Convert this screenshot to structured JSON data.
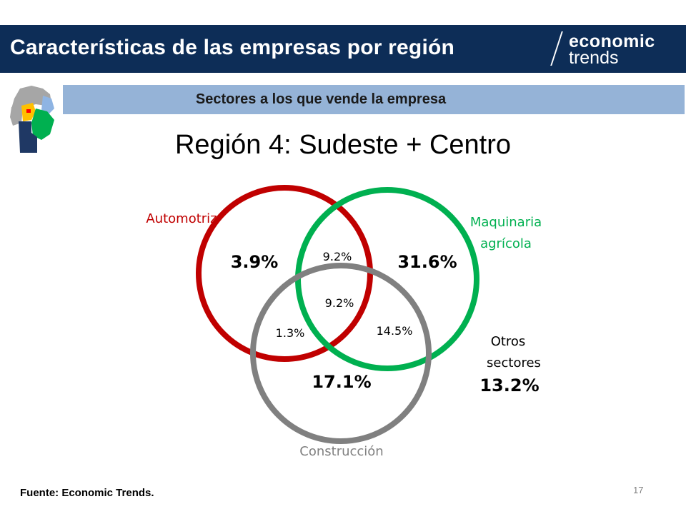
{
  "header": {
    "title": "Características de las empresas por región",
    "logo_line1": "economic",
    "logo_line2": "trends"
  },
  "subtitle": "Sectores a los que vende la empresa",
  "region_title": "Región 4: Sudeste + Centro",
  "venn": {
    "sets": [
      {
        "name": "Automotriz",
        "color": "#c00000"
      },
      {
        "name_line1": "Maquinaria",
        "name_line2": "agrícola",
        "color": "#00b050"
      },
      {
        "name": "Construcción",
        "color": "#808080"
      }
    ],
    "regions": {
      "automotriz_only": "3.9%",
      "automotriz_maquinaria": "9.2%",
      "maquinaria_only": "31.6%",
      "all_three": "9.2%",
      "automotriz_construccion": "1.3%",
      "maquinaria_construccion": "14.5%",
      "construccion_only": "17.1%"
    },
    "otros": {
      "label_line1": "Otros",
      "label_line2": "sectores",
      "value": "13.2%"
    }
  },
  "footer": {
    "source": "Fuente: Economic Trends.",
    "page_number": "17"
  },
  "colors": {
    "header_bg": "#0d2d57",
    "subtitle_bg": "#95b3d7",
    "automotriz": "#c00000",
    "maquinaria": "#00b050",
    "construccion": "#808080"
  }
}
